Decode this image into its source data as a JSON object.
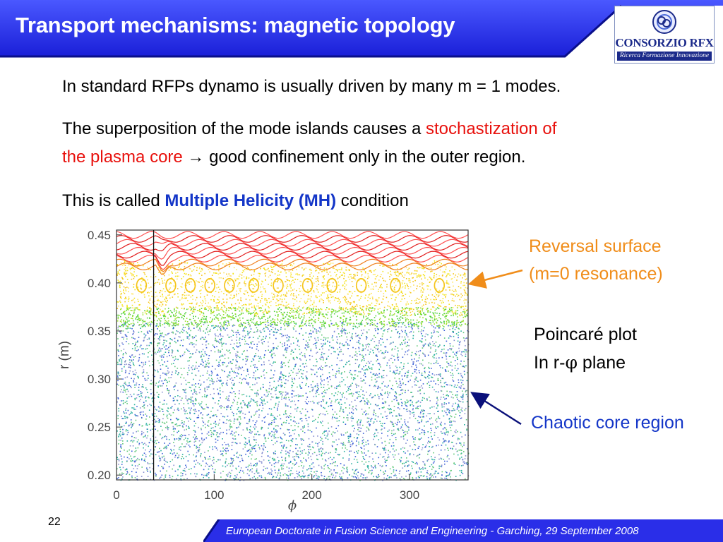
{
  "header": {
    "title": "Transport mechanisms: magnetic topology",
    "logo_name": "CONSORZIO RFX",
    "logo_tagline": "Ricerca Formazione Innovazione"
  },
  "body": {
    "line1": "In standard RFPs dynamo is usually driven by many m = 1 modes.",
    "line2_a": "The superposition of the mode islands causes a ",
    "line2_red1": "stochastization of",
    "line3_red": "the plasma core",
    "line3_arrow": " → ",
    "line3_b": "good confinement only in the outer region.",
    "line4_a": "This is called ",
    "line4_blue": "Multiple Helicity (MH)",
    "line4_b": " condition"
  },
  "annotations": {
    "reversal_line1": "Reversal surface",
    "reversal_line2": "(m=0 resonance)",
    "poincare_line1": "Poincaré plot",
    "poincare_line2_a": "In r-",
    "poincare_line2_phi": "φ",
    "poincare_line2_b": " plane",
    "chaotic": "Chaotic core region"
  },
  "chart_data": {
    "type": "scatter",
    "title": "",
    "xlabel": "ϕ",
    "ylabel": "r (m)",
    "xlim": [
      0,
      360
    ],
    "ylim": [
      0.195,
      0.455
    ],
    "x_ticks": [
      "0",
      "100",
      "200",
      "300"
    ],
    "y_ticks": [
      "0.20",
      "0.25",
      "0.30",
      "0.35",
      "0.40",
      "0.45"
    ],
    "regions": [
      {
        "name": "chaotic core",
        "r_range": [
          0.195,
          0.36
        ],
        "colors": [
          "#3a5fd8",
          "#28b0a0",
          "#60c878",
          "#8890d0"
        ]
      },
      {
        "name": "green band",
        "r_range": [
          0.355,
          0.375
        ],
        "colors": [
          "#4fd23a",
          "#9be02a"
        ]
      },
      {
        "name": "yellow islands",
        "r_range": [
          0.37,
          0.42
        ],
        "colors": [
          "#f2e41a",
          "#f5c51c",
          "#ffe55a"
        ]
      },
      {
        "name": "orange-red surfaces",
        "r_range": [
          0.415,
          0.452
        ],
        "colors": [
          "#f08020",
          "#e21d1d",
          "#ff5050"
        ]
      }
    ],
    "vertical_line_x": 38,
    "grid": false
  },
  "footer": {
    "page_number": "22",
    "text": "European Doctorate in Fusion Science and Engineering  -  Garching, 29 September 2008"
  },
  "colors": {
    "title_blue": "#2a2ee8",
    "accent_red": "#e8100c",
    "accent_blue": "#1436c8",
    "accent_orange": "#f08d1a"
  }
}
